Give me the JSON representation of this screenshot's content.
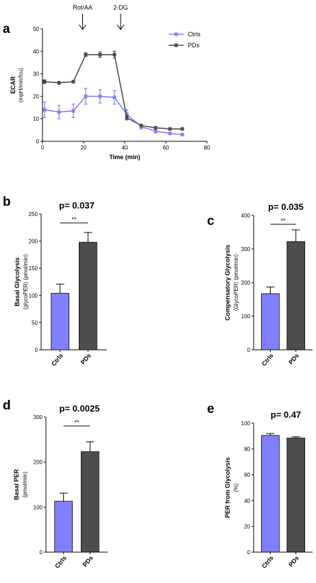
{
  "colors": {
    "ctrl": "#8080ff",
    "pd": "#4d4d4d",
    "axis": "#000000"
  },
  "chart_data": [
    {
      "id": "a",
      "type": "line",
      "panel": "a",
      "xlabel": "Time (min)",
      "ylabel": "ECAR",
      "ylabel2": "(mpH/min/fcu)",
      "xlim": [
        0,
        80
      ],
      "ylim": [
        0,
        50
      ],
      "xticks": [
        0,
        20,
        40,
        60,
        80
      ],
      "yticks": [
        0,
        10,
        20,
        30,
        40,
        50
      ],
      "legend": "top-right",
      "annotations": [
        {
          "text": "Rot/AA",
          "x": 19.5
        },
        {
          "text": "2-DG",
          "x": 38
        }
      ],
      "series": [
        {
          "name": "Ctrls",
          "color": "#8080ff",
          "marker": "square",
          "x": [
            1,
            8,
            15,
            21,
            28,
            35,
            41,
            48,
            55,
            62,
            68
          ],
          "y": [
            14,
            13,
            13.5,
            20,
            20,
            19.5,
            12,
            6.5,
            4.5,
            3.5,
            3
          ],
          "err": [
            3.5,
            3,
            3,
            3.5,
            3,
            3,
            2,
            1,
            0.8,
            0.6,
            0.5
          ]
        },
        {
          "name": "PDs",
          "color": "#4d4d4d",
          "marker": "square",
          "x": [
            1,
            8,
            15,
            21,
            28,
            35,
            41,
            48,
            55,
            62,
            68
          ],
          "y": [
            26.5,
            26,
            26.5,
            38.5,
            38.5,
            38.5,
            10.5,
            7,
            6,
            5.5,
            5.5
          ],
          "err": [
            0.8,
            0.6,
            0.6,
            0.8,
            1.2,
            1.5,
            1,
            0.6,
            0.5,
            0.5,
            0.5
          ]
        }
      ]
    },
    {
      "id": "b",
      "type": "bar",
      "panel": "b",
      "pvalue": "p= 0.037",
      "sig": "**",
      "ylabel": "Basal Glycolysis",
      "ylabel2": "(glycoPER) (pmol/min)",
      "ylim": [
        0,
        250
      ],
      "yticks": [
        0,
        50,
        100,
        150,
        200,
        250
      ],
      "categories": [
        "Ctrls",
        "PDs"
      ],
      "values": [
        104,
        198
      ],
      "err": [
        17,
        18
      ]
    },
    {
      "id": "c",
      "type": "bar",
      "panel": "c",
      "pvalue": "p= 0.035",
      "sig": "**",
      "ylabel": "Compensatory Glycolysis",
      "ylabel2": "(GlycoPER) (pmol/min)",
      "ylim": [
        0,
        400
      ],
      "yticks": [
        0,
        100,
        200,
        300,
        400
      ],
      "categories": [
        "Ctrls",
        "PDs"
      ],
      "values": [
        167,
        322
      ],
      "err": [
        20,
        35
      ]
    },
    {
      "id": "d",
      "type": "bar",
      "panel": "d",
      "pvalue": "p= 0.0025",
      "sig": "**",
      "ylabel": "Basal PER",
      "ylabel2": "(pmol/min)",
      "ylim": [
        0,
        300
      ],
      "yticks": [
        0,
        100,
        200,
        300
      ],
      "categories": [
        "Ctrls",
        "PDs"
      ],
      "values": [
        113,
        223
      ],
      "err": [
        18,
        22
      ]
    },
    {
      "id": "e",
      "type": "bar",
      "panel": "e",
      "pvalue": "p= 0.47",
      "sig": "",
      "ylabel": "PER from Glycolysis",
      "ylabel2": "(%)",
      "ylim": [
        0,
        100
      ],
      "yticks": [
        0,
        20,
        40,
        60,
        80,
        100
      ],
      "categories": [
        "Ctrls",
        "PDs"
      ],
      "values": [
        90.5,
        88.5
      ],
      "err": [
        1.5,
        1
      ]
    }
  ]
}
